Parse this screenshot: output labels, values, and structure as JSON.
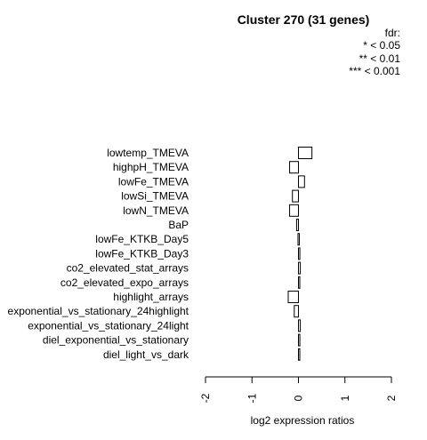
{
  "chart_data": {
    "type": "bar",
    "orientation": "horizontal",
    "title": "Cluster 270 (31 genes)",
    "xlabel": "log2 expression ratios",
    "ylabel": "",
    "xlim": [
      -2,
      2
    ],
    "x_ticks": [
      "-2",
      "-1",
      "0",
      "1",
      "2"
    ],
    "legend": {
      "title": "fdr:",
      "entries": [
        "* < 0.05",
        "** < 0.01",
        "*** < 0.001"
      ],
      "placement": "top-right"
    },
    "categories": [
      "lowtemp_TMEVA",
      "highpH_TMEVA",
      "lowFe_TMEVA",
      "lowSi_TMEVA",
      "lowN_TMEVA",
      "BaP",
      "lowFe_KTKB_Day5",
      "lowFe_KTKB_Day3",
      "co2_elevated_stat_arrays",
      "co2_elevated_expo_arrays",
      "highlight_arrays",
      "exponential_vs_stationary_24highlight",
      "exponential_vs_stationary_24light",
      "diel_exponential_vs_stationary",
      "diel_light_vs_dark"
    ],
    "values": [
      0.29,
      -0.19,
      0.13,
      -0.13,
      -0.19,
      -0.04,
      -0.01,
      0.03,
      0.04,
      0.02,
      -0.22,
      -0.09,
      0.04,
      0.03,
      0.01
    ],
    "grid": false
  }
}
